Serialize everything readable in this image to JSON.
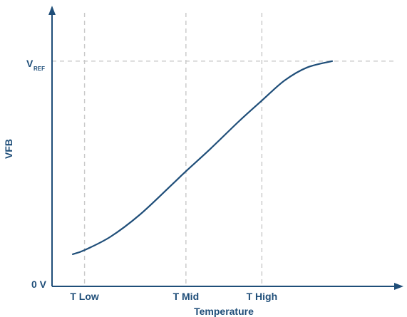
{
  "chart_data": {
    "type": "line",
    "title": "",
    "xlabel": "Temperature",
    "ylabel": "VFB",
    "x_ticks": [
      "T Low",
      "T Mid",
      "T High"
    ],
    "y_ticks": {
      "zero": "0 V",
      "ref_main": "V",
      "ref_sub": "REF"
    },
    "x_range": [
      0,
      1
    ],
    "y_range": [
      0,
      1
    ],
    "x_tick_positions": [
      0.116,
      0.478,
      0.749
    ],
    "y_ref_level": 0.988,
    "series": [
      {
        "points": [
          [
            0.074,
            0.141
          ],
          [
            0.116,
            0.159
          ],
          [
            0.209,
            0.218
          ],
          [
            0.313,
            0.314
          ],
          [
            0.426,
            0.444
          ],
          [
            0.478,
            0.505
          ],
          [
            0.565,
            0.603
          ],
          [
            0.668,
            0.725
          ],
          [
            0.749,
            0.815
          ],
          [
            0.83,
            0.903
          ],
          [
            0.91,
            0.96
          ],
          [
            1.0,
            0.988
          ]
        ]
      }
    ],
    "grid": "dashed reference lines at x ticks and at V REF",
    "legend": "none"
  },
  "colors": {
    "axis": "#1f4e79",
    "curve": "#1f4e79",
    "grid": "#c8c8c8",
    "labels": "#1f4e79"
  }
}
